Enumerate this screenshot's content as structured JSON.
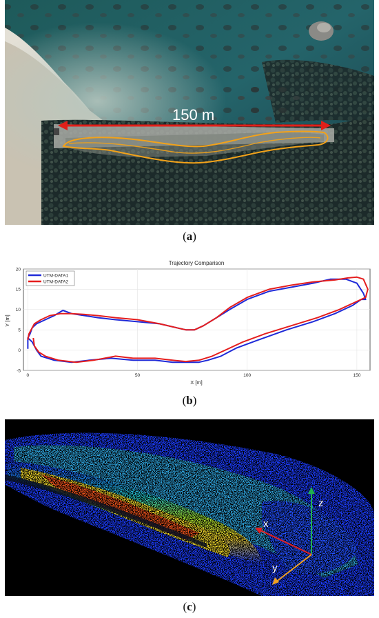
{
  "figure": {
    "panel_a": {
      "scale_label": "150 m",
      "caption_letter": "a"
    },
    "panel_b": {
      "caption_letter": "b"
    },
    "panel_c": {
      "axis_x": "x",
      "axis_y": "y",
      "axis_z": "z",
      "caption_letter": "c"
    }
  },
  "colors": {
    "trajectory_yellow": "#f2a21a",
    "scale_red": "#e0201a",
    "series1_blue": "#1f2ad8",
    "series2_red": "#e51e1e",
    "axis_x_red": "#e02020",
    "axis_y_orange": "#f0a020",
    "axis_z_green": "#20b050"
  },
  "chart_data": {
    "type": "line",
    "title": "Trajectory Comparison",
    "xlabel": "X [m]",
    "ylabel": "Y [m]",
    "xlim": [
      -2,
      156
    ],
    "ylim": [
      -5,
      20
    ],
    "xticks": [
      0,
      50,
      100,
      150
    ],
    "yticks": [
      -5,
      0,
      5,
      10,
      15,
      20
    ],
    "grid": true,
    "legend": "top-left",
    "series": [
      {
        "name": "UTM-DATA1",
        "color": "#1f2ad8",
        "x": [
          0,
          0,
          1,
          2,
          4,
          8,
          12,
          16,
          20,
          26,
          32,
          40,
          50,
          60,
          68,
          72,
          76,
          80,
          86,
          92,
          100,
          110,
          120,
          130,
          138,
          145,
          150,
          153,
          154,
          152,
          148,
          140,
          130,
          118,
          105,
          95,
          88,
          82,
          78,
          72,
          66,
          58,
          48,
          38,
          28,
          20,
          12,
          6,
          4,
          3,
          2,
          1,
          0
        ],
        "y": [
          0.3,
          3,
          4,
          5.5,
          6.5,
          7.5,
          8.5,
          9.8,
          9,
          8.5,
          8,
          7.5,
          7,
          6.5,
          5.5,
          5,
          5,
          6,
          8,
          10,
          12.5,
          14.5,
          15.5,
          16.5,
          17.5,
          17.5,
          16.5,
          14,
          12.5,
          12.5,
          11,
          9,
          7,
          5,
          2.5,
          0.5,
          -1.5,
          -2.5,
          -3,
          -3,
          -3,
          -2.5,
          -2.5,
          -2,
          -2.5,
          -3,
          -2.5,
          -1.5,
          0,
          1,
          2,
          2.5,
          3
        ]
      },
      {
        "name": "UTM-DATA2",
        "color": "#e51e1e",
        "x": [
          0,
          0.5,
          1.5,
          3,
          6,
          10,
          15,
          20,
          26,
          32,
          40,
          50,
          60,
          68,
          72,
          76,
          80,
          86,
          92,
          100,
          110,
          120,
          130,
          140,
          146,
          150,
          153,
          155,
          154,
          150,
          142,
          132,
          120,
          108,
          98,
          90,
          84,
          78,
          72,
          66,
          58,
          48,
          40,
          30,
          22,
          14,
          8,
          5,
          3,
          2.5
        ],
        "y": [
          2.5,
          4,
          5,
          6.5,
          7.5,
          8.5,
          9,
          9,
          8.8,
          8.5,
          8,
          7.5,
          6.5,
          5.5,
          5,
          5,
          6,
          8,
          10.5,
          13,
          15,
          16,
          16.8,
          17.3,
          17.8,
          18,
          17.5,
          15,
          13,
          12,
          10,
          8,
          6,
          4,
          2,
          0,
          -1.5,
          -2.5,
          -2.8,
          -2.5,
          -2,
          -2,
          -1.5,
          -2.5,
          -3,
          -2.5,
          -1.5,
          -0.5,
          1,
          3
        ]
      }
    ]
  }
}
